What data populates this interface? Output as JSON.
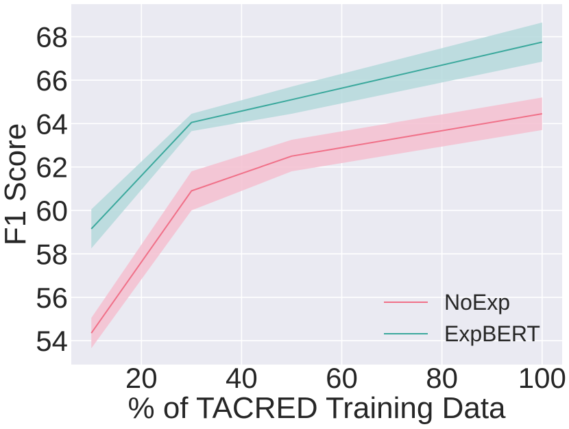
{
  "chart_data": {
    "type": "line",
    "title": "",
    "xlabel": "% of TACRED Training Data",
    "ylabel": "F1 Score",
    "xlim": [
      6,
      104
    ],
    "ylim": [
      52.9,
      69.5
    ],
    "xticks": [
      20,
      40,
      60,
      80,
      100
    ],
    "yticks": [
      54,
      56,
      58,
      60,
      62,
      64,
      66,
      68
    ],
    "grid": true,
    "legend_position": "bottom-right",
    "series": [
      {
        "name": "NoExp",
        "color": "#f07088",
        "band_color": "#f4bfd0",
        "x": [
          10,
          30,
          50,
          100
        ],
        "y": [
          54.35,
          60.9,
          62.5,
          64.45
        ],
        "lower": [
          53.65,
          60.0,
          61.8,
          63.7
        ],
        "upper": [
          55.05,
          61.8,
          63.25,
          65.2
        ]
      },
      {
        "name": "ExpBERT",
        "color": "#3aa89c",
        "band_color": "#b5d9dc",
        "x": [
          10,
          30,
          50,
          100
        ],
        "y": [
          59.15,
          64.05,
          65.1,
          67.75
        ],
        "lower": [
          58.25,
          63.65,
          64.45,
          66.85
        ],
        "upper": [
          60.05,
          64.45,
          65.7,
          68.65
        ]
      }
    ]
  }
}
